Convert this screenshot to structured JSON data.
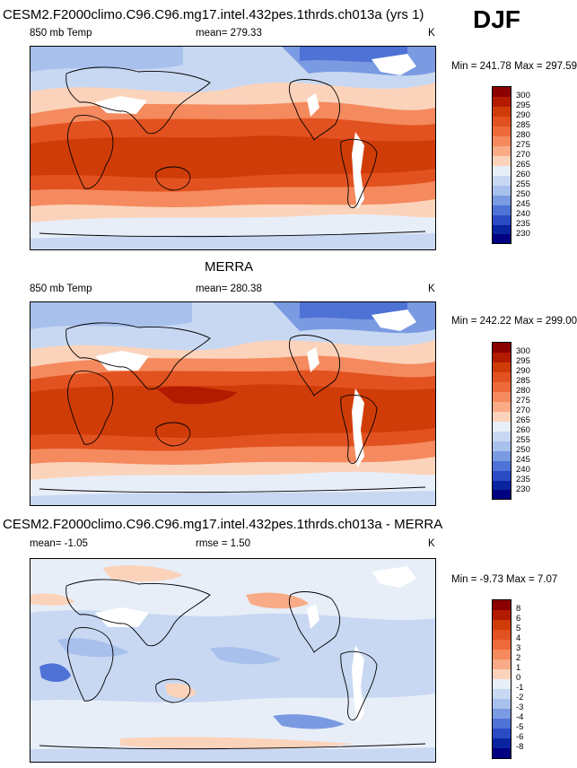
{
  "season": "DJF",
  "panels": [
    {
      "id": "model",
      "title": "CESM2.F2000climo.C96.C96.mg17.intel.432pes.1thrds.ch013a (yrs 1)",
      "left_label": "850 mb Temp",
      "center_label": "mean= 279.33",
      "units": "K",
      "minmax": "Min = 241.78 Max = 297.59",
      "levels": [
        "300",
        "295",
        "290",
        "285",
        "280",
        "275",
        "270",
        "265",
        "260",
        "255",
        "250",
        "245",
        "240",
        "235",
        "230"
      ],
      "colors": [
        "#8b0000",
        "#b31b00",
        "#d03c08",
        "#e25220",
        "#ee6a3a",
        "#f48a5e",
        "#f8ab86",
        "#fbd3bb",
        "#e8eef8",
        "#c8d8f2",
        "#a8c0ec",
        "#7a9ae2",
        "#4f72d6",
        "#2a4bc4",
        "#0a24a0",
        "#000080"
      ]
    },
    {
      "id": "obs",
      "title": "MERRA",
      "left_label": "850 mb Temp",
      "center_label": "mean= 280.38",
      "units": "K",
      "minmax": "Min = 242.22 Max = 299.00",
      "levels": [
        "300",
        "295",
        "290",
        "285",
        "280",
        "275",
        "270",
        "265",
        "260",
        "255",
        "250",
        "245",
        "240",
        "235",
        "230"
      ],
      "colors": [
        "#8b0000",
        "#b31b00",
        "#d03c08",
        "#e25220",
        "#ee6a3a",
        "#f48a5e",
        "#f8ab86",
        "#fbd3bb",
        "#e8eef8",
        "#c8d8f2",
        "#a8c0ec",
        "#7a9ae2",
        "#4f72d6",
        "#2a4bc4",
        "#0a24a0",
        "#000080"
      ]
    },
    {
      "id": "diff",
      "title": "CESM2.F2000climo.C96.C96.mg17.intel.432pes.1thrds.ch013a - MERRA",
      "left_label": "mean=  -1.05",
      "center_label": "rmse =   1.50",
      "units": "K",
      "minmax": "Min =  -9.73 Max =   7.07",
      "levels": [
        "8",
        "6",
        "5",
        "4",
        "3",
        "2",
        "1",
        "0",
        "-1",
        "-2",
        "-3",
        "-4",
        "-5",
        "-6",
        "-8"
      ],
      "colors": [
        "#8b0000",
        "#b31b00",
        "#d03c08",
        "#e25220",
        "#ee6a3a",
        "#f48a5e",
        "#f8ab86",
        "#fbd3bb",
        "#e8eef8",
        "#c8d8f2",
        "#a8c0ec",
        "#7a9ae2",
        "#4f72d6",
        "#2a4bc4",
        "#0a24a0",
        "#000080"
      ]
    }
  ]
}
